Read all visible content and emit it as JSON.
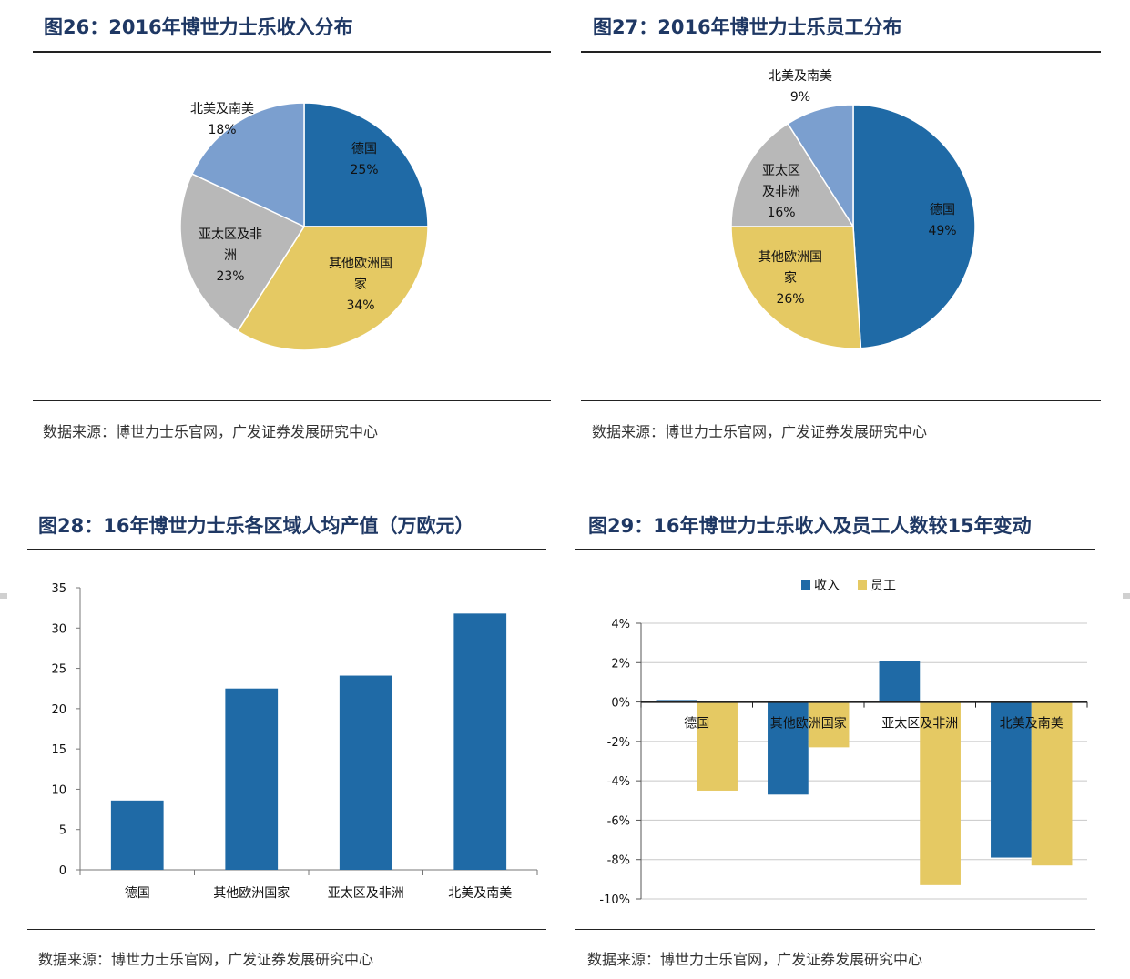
{
  "charts": [
    {
      "title": "图26：2016年博世力士乐收入分布",
      "source": "数据来源：博世力士乐官网，广发证券发展研究中心"
    },
    {
      "title": "图27：2016年博世力士乐员工分布",
      "source": "数据来源：博世力士乐官网，广发证券发展研究中心"
    },
    {
      "title": "图28：16年博世力士乐各区域人均产值（万欧元）",
      "source": "数据来源：博世力士乐官网，广发证券发展研究中心"
    },
    {
      "title": "图29：16年博世力士乐收入及员工人数较15年变动",
      "source": "数据来源：博世力士乐官网，广发证券发展研究中心"
    }
  ],
  "chart_data": [
    {
      "type": "pie",
      "title": "图26：2016年博世力士乐收入分布",
      "slices": [
        {
          "label": "德国",
          "value": 25,
          "text": "25%",
          "color": "#1f6aa6"
        },
        {
          "label": "其他欧洲国家",
          "value": 34,
          "text": "34%",
          "color": "#e5c963"
        },
        {
          "label": "亚太区及非洲",
          "value": 23,
          "text": "23%",
          "color": "#b8b8b8"
        },
        {
          "label": "北美及南美",
          "value": 18,
          "text": "18%",
          "color": "#7b9fcf"
        }
      ]
    },
    {
      "type": "pie",
      "title": "图27：2016年博世力士乐员工分布",
      "slices": [
        {
          "label": "德国",
          "value": 49,
          "text": "49%",
          "color": "#1f6aa6"
        },
        {
          "label": "其他欧洲国家",
          "value": 26,
          "text": "26%",
          "color": "#e5c963"
        },
        {
          "label": "亚太区及非洲",
          "value": 16,
          "text": "16%",
          "color": "#b8b8b8"
        },
        {
          "label": "北美及南美",
          "value": 9,
          "text": "9%",
          "color": "#7b9fcf"
        }
      ]
    },
    {
      "type": "bar",
      "title": "图28：16年博世力士乐各区域人均产值（万欧元）",
      "categories": [
        "德国",
        "其他欧洲国家",
        "亚太区及非洲",
        "北美及南美"
      ],
      "values": [
        8.6,
        22.5,
        24.1,
        31.8
      ],
      "ylim": [
        0,
        35
      ],
      "yticks": [
        "0",
        "5",
        "10",
        "15",
        "20",
        "25",
        "30",
        "35"
      ],
      "color": "#1f6aa6",
      "grid": false
    },
    {
      "type": "bar",
      "title": "图29：16年博世力士乐收入及员工人数较15年变动",
      "categories": [
        "德国",
        "其他欧洲国家",
        "亚太区及非洲",
        "北美及南美"
      ],
      "series": [
        {
          "name": "收入",
          "values": [
            0.1,
            -4.7,
            2.1,
            -7.9
          ],
          "color": "#1f6aa6"
        },
        {
          "name": "员工",
          "values": [
            -4.5,
            -2.3,
            -9.3,
            -8.3
          ],
          "color": "#e5c963"
        }
      ],
      "ylim": [
        -10,
        4
      ],
      "yticks": [
        "4%",
        "2%",
        "0%",
        "-2%",
        "-4%",
        "-6%",
        "-8%",
        "-10%"
      ],
      "grid": true,
      "legend": "top"
    }
  ]
}
